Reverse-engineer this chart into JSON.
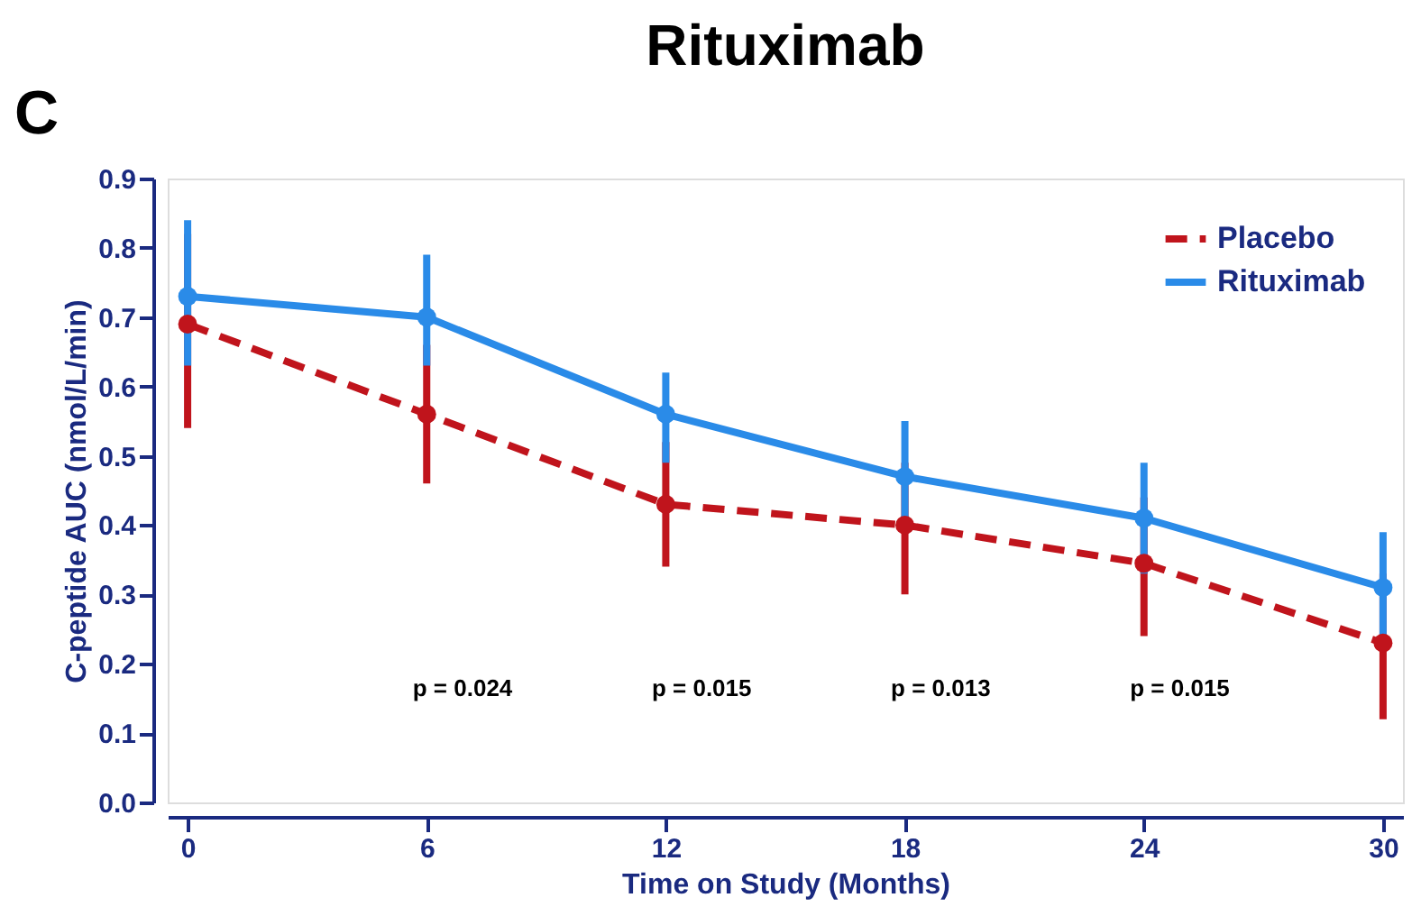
{
  "chart_data": {
    "type": "line",
    "title": "Rituximab",
    "xlabel": "Time on Study (Months)",
    "ylabel": "C-peptide AUC (nmol/L/min)",
    "x": [
      0,
      6,
      12,
      18,
      24,
      30
    ],
    "series": [
      {
        "name": "Placebo",
        "color": "#c0141c",
        "line_style": "dashed",
        "values": [
          0.69,
          0.56,
          0.43,
          0.4,
          0.345,
          0.23
        ],
        "errors": [
          [
            0.54,
            0.82
          ],
          [
            0.46,
            0.66
          ],
          [
            0.34,
            0.52
          ],
          [
            0.3,
            0.49
          ],
          [
            0.24,
            0.44
          ],
          [
            0.12,
            0.33
          ]
        ]
      },
      {
        "name": "Rituximab",
        "color": "#2a8be8",
        "line_style": "solid",
        "values": [
          0.73,
          0.7,
          0.56,
          0.47,
          0.41,
          0.31
        ],
        "errors": [
          [
            0.63,
            0.84
          ],
          [
            0.63,
            0.79
          ],
          [
            0.49,
            0.62
          ],
          [
            0.39,
            0.55
          ],
          [
            0.33,
            0.49
          ],
          [
            0.24,
            0.39
          ]
        ]
      }
    ],
    "xlim": [
      -0.5,
      30.5
    ],
    "xticks": [
      0,
      6,
      12,
      18,
      24,
      30
    ],
    "ylim": [
      0,
      0.9
    ],
    "yticks": [
      {
        "value": 0,
        "label": "0.0"
      },
      0.1,
      0.2,
      0.3,
      0.4,
      0.5,
      0.6,
      0.7,
      0.8,
      0.9
    ],
    "annotations": [
      "C",
      "p = 0.024",
      "p = 0.015",
      "p = 0.013",
      "p = 0.015"
    ],
    "legend": "top right",
    "marker": "circle",
    "grid": false
  }
}
